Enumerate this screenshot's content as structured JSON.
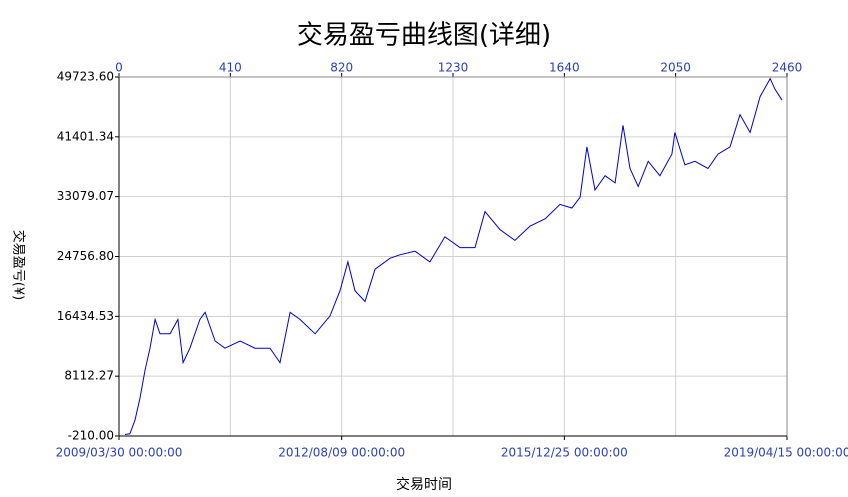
{
  "chart_data": {
    "type": "line",
    "title": "交易盈亏曲线图(详细)",
    "y_label": "交易盈亏(¥)",
    "x_label": "交易时间",
    "color": "#0000c8",
    "grid": true,
    "xlim": [
      0,
      2460
    ],
    "xticks": [
      0,
      410,
      820,
      1230,
      1640,
      2050,
      2460
    ],
    "date_ticks": [
      {
        "value": 0,
        "label": "2009/03/30 00:00:00"
      },
      {
        "value": 820,
        "label": "2012/08/09 00:00:00"
      },
      {
        "value": 1640,
        "label": "2015/12/25 00:00:00"
      },
      {
        "value": 2460,
        "label": "2019/04/15 00:00:00"
      }
    ],
    "ylim": [
      -210,
      49723.6
    ],
    "yticks": [
      {
        "value": -210,
        "label": "-210.00"
      },
      {
        "value": 8112.27,
        "label": "8112.27"
      },
      {
        "value": 16434.53,
        "label": "16434.53"
      },
      {
        "value": 24756.8,
        "label": "24756.80"
      },
      {
        "value": 33079.07,
        "label": "33079.07"
      },
      {
        "value": 41401.34,
        "label": "41401.34"
      },
      {
        "value": 49723.6,
        "label": "49723.60"
      }
    ],
    "x": [
      22,
      40,
      59,
      77,
      96,
      114,
      133,
      151,
      188,
      217,
      236,
      261,
      298,
      317,
      354,
      390,
      446,
      501,
      556,
      593,
      630,
      667,
      722,
      777,
      814,
      843,
      869,
      906,
      943,
      998,
      1034,
      1090,
      1145,
      1200,
      1256,
      1311,
      1348,
      1403,
      1458,
      1514,
      1569,
      1624,
      1668,
      1698,
      1723,
      1753,
      1790,
      1827,
      1856,
      1882,
      1912,
      1949,
      1992,
      2036,
      2047,
      2084,
      2121,
      2169,
      2206,
      2250,
      2287,
      2324,
      2361,
      2398,
      2416,
      2442
    ],
    "values": [
      0,
      100,
      2000,
      5000,
      9000,
      12000,
      16000,
      14000,
      14000,
      16000,
      10000,
      12000,
      16000,
      17000,
      13000,
      12000,
      13000,
      12000,
      12000,
      10000,
      17000,
      16000,
      14000,
      16500,
      20000,
      24000,
      20000,
      18500,
      23000,
      24500,
      25000,
      25500,
      24000,
      27500,
      26000,
      26000,
      31000,
      28500,
      27000,
      29000,
      30000,
      32000,
      31500,
      33000,
      40000,
      34000,
      36000,
      35000,
      43000,
      37000,
      34500,
      38000,
      36000,
      39000,
      42000,
      37500,
      38000,
      37000,
      39000,
      40000,
      44500,
      42000,
      47000,
      49500,
      48000,
      46500
    ]
  }
}
